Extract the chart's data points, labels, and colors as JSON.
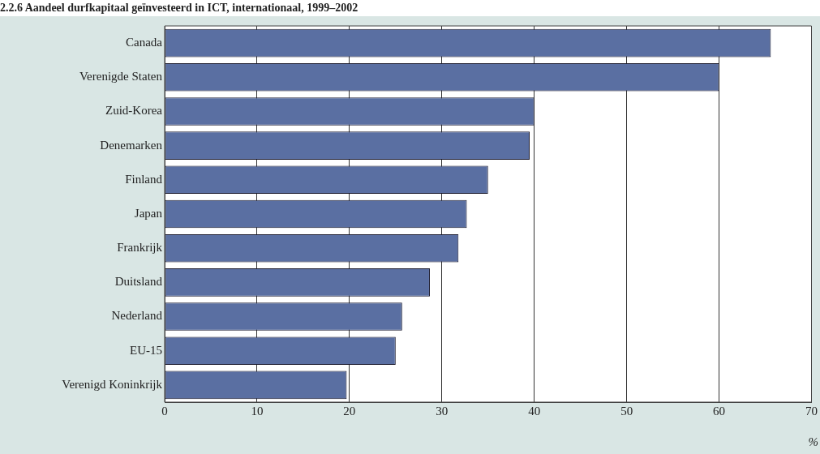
{
  "chart_data": {
    "type": "bar",
    "orientation": "horizontal",
    "title": "2.2.6  Aandeel durfkapitaal geïnvesteerd in ICT, internationaal, 1999–2002",
    "xlabel": "%",
    "categories": [
      "Canada",
      "Verenigde Staten",
      "Zuid-Korea",
      "Denemarken",
      "Finland",
      "Japan",
      "Frankrijk",
      "Duitsland",
      "Nederland",
      "EU-15",
      "Verenigd Koninkrijk"
    ],
    "values": [
      65.6,
      60,
      40,
      39.5,
      35,
      32.7,
      31.8,
      28.7,
      25.7,
      25,
      19.7
    ],
    "color": "#5a6fa2",
    "xlim": [
      0,
      70
    ],
    "xticks": [
      0,
      10,
      20,
      30,
      40,
      50,
      60,
      70
    ],
    "grid": "x",
    "legend": false
  }
}
